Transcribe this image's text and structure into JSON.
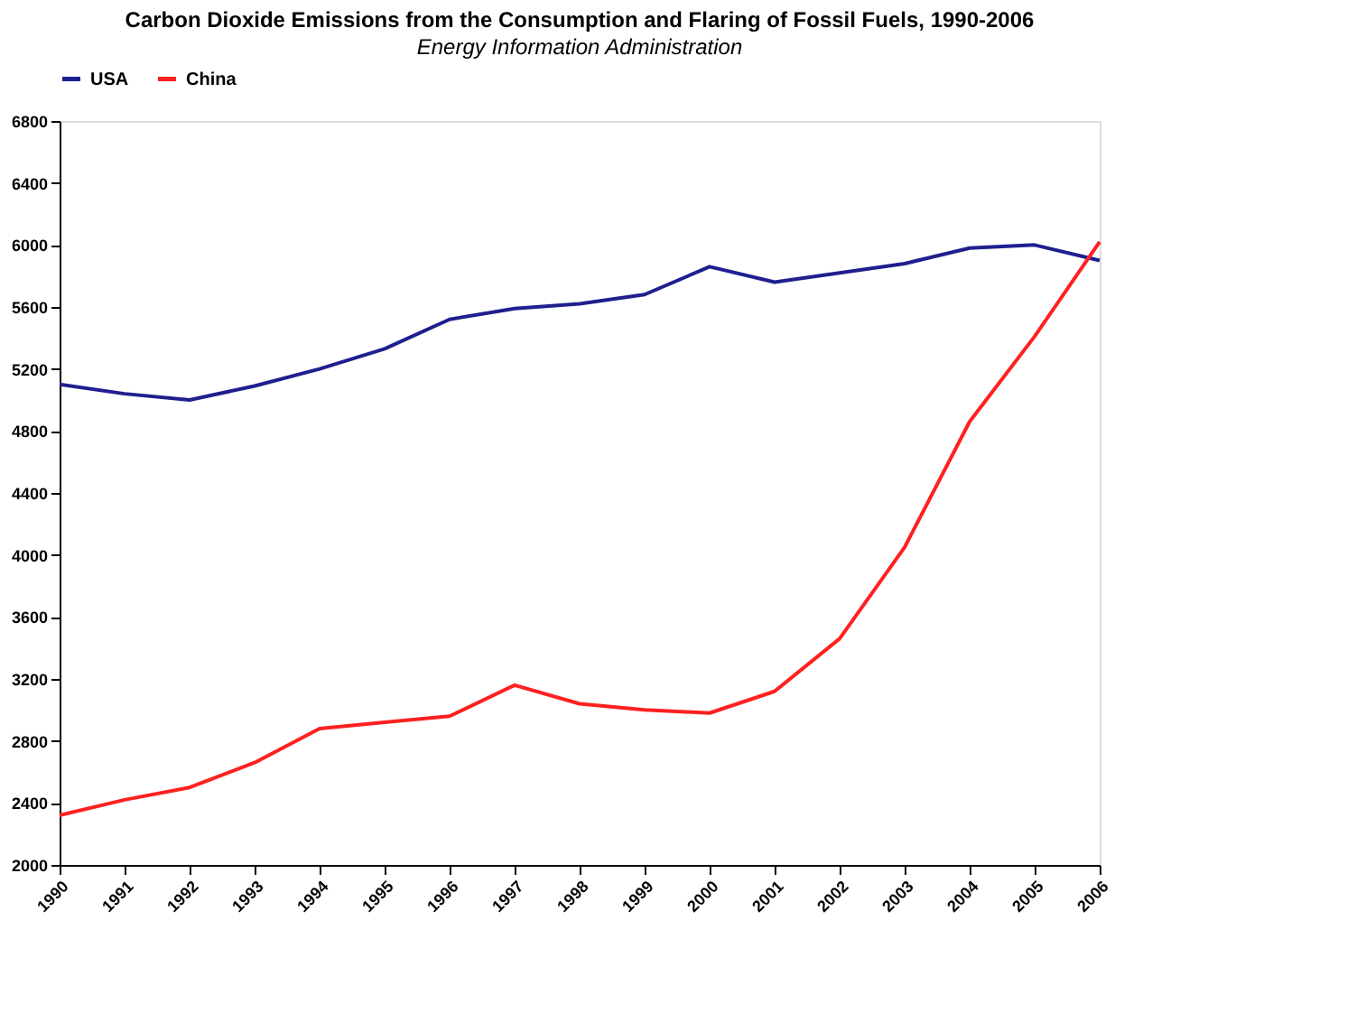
{
  "chart_data": {
    "type": "line",
    "title": "Carbon Dioxide Emissions from the Consumption and Flaring of Fossil Fuels, 1990-2006",
    "subtitle": "Energy Information Administration",
    "categories": [
      "1990",
      "1991",
      "1992",
      "1993",
      "1994",
      "1995",
      "1996",
      "1997",
      "1998",
      "1999",
      "2000",
      "2001",
      "2002",
      "2003",
      "2004",
      "2005",
      "2006"
    ],
    "series": [
      {
        "name": "USA",
        "color": "#1f1f8f",
        "values": [
          5100,
          5040,
          5000,
          5090,
          5200,
          5330,
          5520,
          5590,
          5620,
          5680,
          5860,
          5760,
          5820,
          5880,
          5980,
          6000,
          5900
        ]
      },
      {
        "name": "China",
        "color": "#ff2020",
        "values": [
          2320,
          2420,
          2500,
          2660,
          2880,
          2920,
          2960,
          3160,
          3040,
          3000,
          2980,
          3120,
          3460,
          4050,
          4860,
          5410,
          6020
        ]
      }
    ],
    "ylim": [
      2000,
      6800
    ],
    "yticks": [
      2000,
      2400,
      2800,
      3200,
      3600,
      4000,
      4400,
      4800,
      5200,
      5600,
      6000,
      6400,
      6800
    ],
    "grid": false,
    "legend": "top",
    "marker": "none",
    "line_style": "solid"
  }
}
